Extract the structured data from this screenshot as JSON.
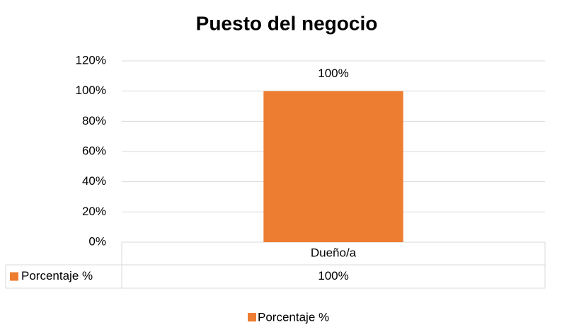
{
  "chart_data": {
    "type": "bar",
    "title": "Puesto del negocio",
    "categories": [
      "Dueño/a"
    ],
    "series": [
      {
        "name": "Porcentaje %",
        "color": "#ed7d31",
        "values": [
          100
        ],
        "value_labels": [
          "100%"
        ]
      }
    ],
    "ylim": [
      0,
      120
    ],
    "yticks": [
      {
        "value": 0,
        "label": "0%"
      },
      {
        "value": 20,
        "label": "20%"
      },
      {
        "value": 40,
        "label": "40%"
      },
      {
        "value": 60,
        "label": "60%"
      },
      {
        "value": 80,
        "label": "80%"
      },
      {
        "value": 100,
        "label": "100%"
      },
      {
        "value": 120,
        "label": "120%"
      }
    ],
    "grid": true,
    "legend": "bottom",
    "data_table": true
  }
}
